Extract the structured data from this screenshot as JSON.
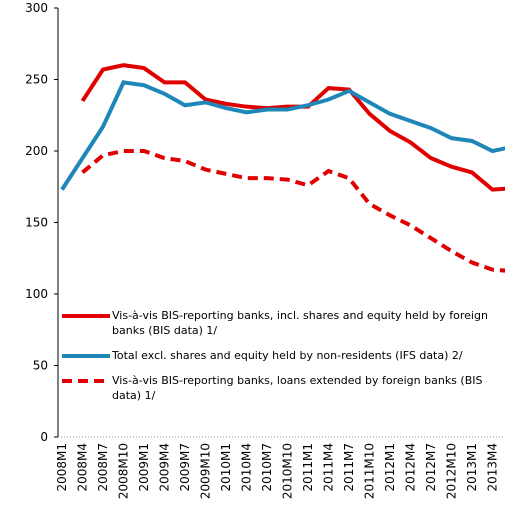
{
  "chart_data": {
    "type": "line",
    "categories": [
      "2008M1",
      "2008M4",
      "2008M7",
      "2008M10",
      "2009M1",
      "2009M4",
      "2009M7",
      "2009M10",
      "2010M1",
      "2010M4",
      "2010M7",
      "2010M10",
      "2011M1",
      "2011M4",
      "2011M7",
      "2011M10",
      "2012M1",
      "2012M4",
      "2012M7",
      "2012M10",
      "2013M1",
      "2013M4",
      null
    ],
    "series": [
      {
        "name": "Vis-à-vis BIS-reporting  banks, incl. shares and equity held by foreign banks (BIS data) 1/",
        "color": "#e00000",
        "dash": false,
        "values": [
          null,
          235,
          257,
          260,
          258,
          248,
          248,
          236,
          233,
          231,
          230,
          231,
          231,
          244,
          243,
          226,
          214,
          206,
          195,
          189,
          185,
          173,
          174
        ]
      },
      {
        "name": "Total excl. shares and equity held by non-residents  (IFS data) 2/",
        "color": "#1f86b8",
        "dash": false,
        "values": [
          173,
          195,
          217,
          248,
          246,
          240,
          232,
          234,
          230,
          227,
          229,
          229,
          232,
          236,
          242,
          234,
          226,
          221,
          216,
          209,
          207,
          200,
          203
        ]
      },
      {
        "name": "Vis-à-vis BIS-reporting  banks, loans extended by foreign banks (BIS data) 1/",
        "color": "#e00000",
        "dash": true,
        "values": [
          null,
          185,
          197,
          200,
          200,
          195,
          193,
          187,
          184,
          181,
          181,
          180,
          176,
          186,
          181,
          163,
          155,
          148,
          139,
          130,
          122,
          117,
          116
        ]
      }
    ],
    "ylim": [
      0,
      300
    ],
    "yticks": [
      0,
      50,
      100,
      150,
      200,
      250,
      300
    ]
  }
}
